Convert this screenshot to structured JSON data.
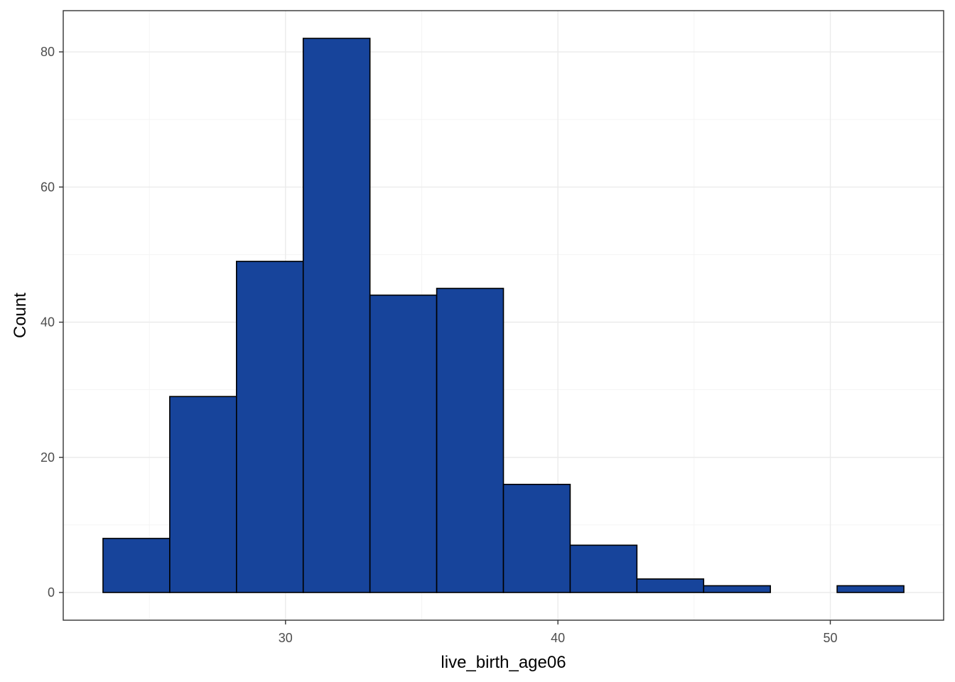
{
  "chart_data": {
    "type": "bar",
    "subtype": "histogram",
    "title": "",
    "xlabel": "live_birth_age06",
    "ylabel": "Count",
    "bin_width": 2.45,
    "bins": [
      {
        "x0": 23.3,
        "x1": 25.75,
        "count": 8
      },
      {
        "x0": 25.75,
        "x1": 28.2,
        "count": 29
      },
      {
        "x0": 28.2,
        "x1": 30.65,
        "count": 49
      },
      {
        "x0": 30.65,
        "x1": 33.1,
        "count": 82
      },
      {
        "x0": 33.1,
        "x1": 35.55,
        "count": 44
      },
      {
        "x0": 35.55,
        "x1": 38.0,
        "count": 45
      },
      {
        "x0": 38.0,
        "x1": 40.45,
        "count": 16
      },
      {
        "x0": 40.45,
        "x1": 42.9,
        "count": 7
      },
      {
        "x0": 42.9,
        "x1": 45.35,
        "count": 2
      },
      {
        "x0": 45.35,
        "x1": 47.8,
        "count": 1
      },
      {
        "x0": 47.8,
        "x1": 50.25,
        "count": 0
      },
      {
        "x0": 50.25,
        "x1": 52.7,
        "count": 1
      }
    ],
    "xlim": [
      21.84,
      54.16
    ],
    "ylim": [
      -4.1,
      86.1
    ],
    "x_ticks": [
      30,
      40,
      50
    ],
    "x_minor_ticks": [
      25,
      35,
      45
    ],
    "y_ticks": [
      0,
      20,
      40,
      60,
      80
    ],
    "y_minor_ticks": [
      10,
      30,
      50,
      70
    ],
    "grid": true,
    "legend": "none",
    "bar_fill": "#17449b",
    "bar_outline": "#000000",
    "theme": "bw"
  }
}
